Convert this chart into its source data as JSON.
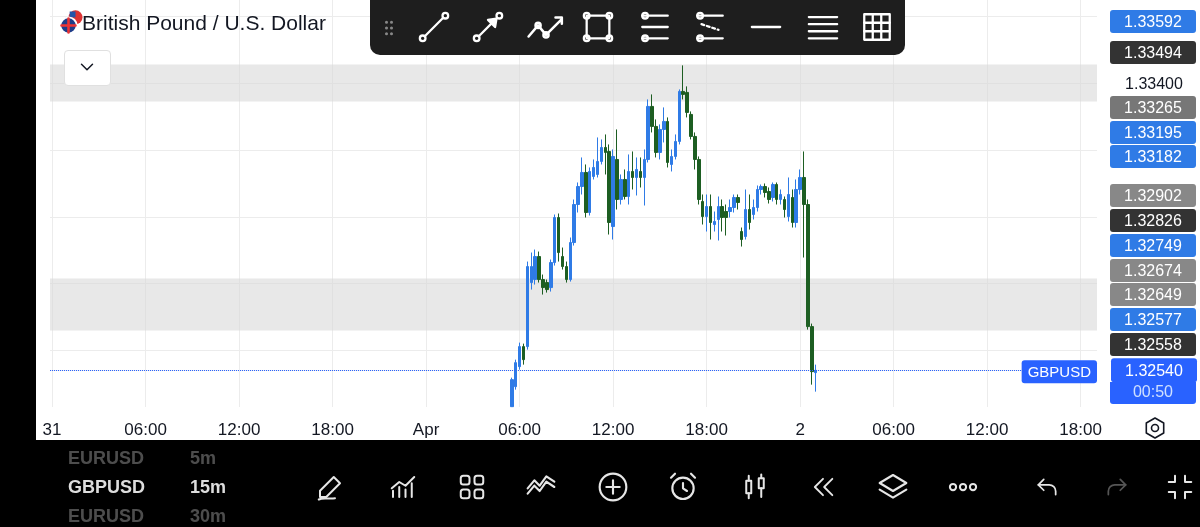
{
  "chart_data": {
    "type": "candlestick",
    "title": "British Pound / U.S. Dollar",
    "x": [
      "--04-01T05:30",
      "--04-01T05:45",
      "--04-01T06:00",
      "--04-01T06:15",
      "--04-01T06:30",
      "--04-01T06:45",
      "--04-01T07:00",
      "--04-01T07:15",
      "--04-01T07:30",
      "--04-01T07:45",
      "--04-01T08:00",
      "--04-01T08:15",
      "--04-01T08:30",
      "--04-01T08:45",
      "--04-01T09:00",
      "--04-01T09:15",
      "--04-01T09:30",
      "--04-01T09:45",
      "--04-01T10:00",
      "--04-01T10:15",
      "--04-01T10:30",
      "--04-01T10:45",
      "--04-01T11:00",
      "--04-01T11:15",
      "--04-01T11:30",
      "--04-01T11:45",
      "--04-01T12:00",
      "--04-01T12:15",
      "--04-01T12:30",
      "--04-01T12:45",
      "--04-01T13:00",
      "--04-01T13:15",
      "--04-01T13:30",
      "--04-01T13:45",
      "--04-01T14:00",
      "--04-01T14:15",
      "--04-01T14:30",
      "--04-01T14:45",
      "--04-01T15:00",
      "--04-01T15:15",
      "--04-01T15:30",
      "--04-01T15:45",
      "--04-01T16:00",
      "--04-01T16:15",
      "--04-01T16:30",
      "--04-01T16:45",
      "--04-01T17:00",
      "--04-01T17:15",
      "--04-01T17:30",
      "--04-01T17:45",
      "--04-01T18:00",
      "--04-01T18:15",
      "--04-01T18:30",
      "--04-01T18:45",
      "--04-01T19:00",
      "--04-01T19:15",
      "--04-01T19:30",
      "--04-01T19:45",
      "--04-01T20:00",
      "--04-01T20:15",
      "--04-01T20:30",
      "--04-01T20:45",
      "--04-01T21:00",
      "--04-01T21:15",
      "--04-01T21:30",
      "--04-01T21:45",
      "--04-01T22:00",
      "--04-01T22:15",
      "--04-01T22:30",
      "--04-01T22:45",
      "--04-01T23:00",
      "--04-01T23:15",
      "--04-01T23:30",
      "--04-01T23:45",
      "--04-02T00:00",
      "--04-02T00:15",
      "--04-02T00:30",
      "--04-02T00:45",
      "--04-02T01:00"
    ],
    "ohlc": [
      [
        1.32431,
        1.32518,
        1.32431,
        1.32512
      ],
      [
        1.32491,
        1.32572,
        1.32482,
        1.32563
      ],
      [
        1.32551,
        1.32623,
        1.32542,
        1.32611
      ],
      [
        1.32611,
        1.3262,
        1.32557,
        1.32572
      ],
      [
        1.32611,
        1.32866,
        1.32602,
        1.32851
      ],
      [
        1.32803,
        1.32893,
        1.32782,
        1.32851
      ],
      [
        1.32812,
        1.32902,
        1.32797,
        1.32881
      ],
      [
        1.32881,
        1.32896,
        1.32803,
        1.32812
      ],
      [
        1.32812,
        1.32827,
        1.32767,
        1.32788
      ],
      [
        1.32803,
        1.32812,
        1.32773,
        1.32782
      ],
      [
        1.32788,
        1.32872,
        1.32776,
        1.32863
      ],
      [
        1.32863,
        1.33007,
        1.32854,
        1.32998
      ],
      [
        1.32998,
        1.3301,
        1.32866,
        1.32893
      ],
      [
        1.32881,
        1.32908,
        1.32842,
        1.32851
      ],
      [
        1.32851,
        1.32866,
        1.32803,
        1.32812
      ],
      [
        1.32812,
        1.32938,
        1.32806,
        1.32923
      ],
      [
        1.32923,
        1.33052,
        1.32914,
        1.33037
      ],
      [
        1.33037,
        1.33103,
        1.33013,
        1.33091
      ],
      [
        1.33091,
        1.33178,
        1.33067,
        1.33133
      ],
      [
        1.33133,
        1.33157,
        1.32998,
        1.33013
      ],
      [
        1.33013,
        1.33148,
        1.33004,
        1.33136
      ],
      [
        1.33121,
        1.33172,
        1.33112,
        1.33148
      ],
      [
        1.33127,
        1.33238,
        1.33118,
        1.33166
      ],
      [
        1.33166,
        1.33232,
        1.33157,
        1.33208
      ],
      [
        1.33208,
        1.33247,
        1.33127,
        1.33193
      ],
      [
        1.33196,
        1.33217,
        1.32947,
        1.32983
      ],
      [
        1.32971,
        1.33202,
        1.32932,
        1.33181
      ],
      [
        1.33172,
        1.33262,
        1.33022,
        1.33052
      ],
      [
        1.33052,
        1.33127,
        1.33037,
        1.33112
      ],
      [
        1.33112,
        1.33142,
        1.33052,
        1.33061
      ],
      [
        1.33061,
        1.33187,
        1.33037,
        1.33136
      ],
      [
        1.33136,
        1.33196,
        1.33082,
        1.33118
      ],
      [
        1.33118,
        1.33178,
        1.33064,
        1.33142
      ],
      [
        1.33136,
        1.33178,
        1.33088,
        1.33118
      ],
      [
        1.33118,
        1.33202,
        1.33034,
        1.33172
      ],
      [
        1.33172,
        1.33352,
        1.33163,
        1.33331
      ],
      [
        1.33331,
        1.33367,
        1.33253,
        1.33271
      ],
      [
        1.33271,
        1.33292,
        1.33178,
        1.33193
      ],
      [
        1.33193,
        1.33277,
        1.33172,
        1.33262
      ],
      [
        1.33262,
        1.33328,
        1.33223,
        1.33286
      ],
      [
        1.33286,
        1.33298,
        1.33148,
        1.33163
      ],
      [
        1.33157,
        1.33202,
        1.33136,
        1.33181
      ],
      [
        1.33181,
        1.33247,
        1.33172,
        1.33226
      ],
      [
        1.33226,
        1.33382,
        1.33217,
        1.33376
      ],
      [
        1.33376,
        1.33454,
        1.33352,
        1.33367
      ],
      [
        1.33373,
        1.33391,
        1.33298,
        1.33313
      ],
      [
        1.33307,
        1.33316,
        1.33232,
        1.33241
      ],
      [
        1.33241,
        1.33253,
        1.33142,
        1.33172
      ],
      [
        1.33172,
        1.33181,
        1.33037,
        1.33052
      ],
      [
        1.33046,
        1.33067,
        1.32977,
        1.33001
      ],
      [
        1.33001,
        1.33067,
        1.32956,
        1.33031
      ],
      [
        1.33031,
        1.33067,
        1.32932,
        1.32983
      ],
      [
        1.32977,
        1.33016,
        1.32956,
        1.32986
      ],
      [
        1.32992,
        1.33061,
        1.32929,
        1.33031
      ],
      [
        1.33031,
        1.33052,
        1.32956,
        1.32998
      ],
      [
        1.33016,
        1.33037,
        1.32944,
        1.32998
      ],
      [
        1.33016,
        1.33052,
        1.32998,
        1.33028
      ],
      [
        1.33028,
        1.33067,
        1.33013,
        1.33058
      ],
      [
        1.33058,
        1.33067,
        1.33022,
        1.33043
      ],
      [
        1.32956,
        1.32968,
        1.32911,
        1.32932
      ],
      [
        1.32941,
        1.33082,
        1.32932,
        1.33022
      ],
      [
        1.33022,
        1.33067,
        1.32962,
        1.32983
      ],
      [
        1.33007,
        1.33052,
        1.32992,
        1.33028
      ],
      [
        1.33028,
        1.33094,
        1.33016,
        1.33082
      ],
      [
        1.33082,
        1.33097,
        1.33067,
        1.33091
      ],
      [
        1.33091,
        1.331,
        1.33058,
        1.33073
      ],
      [
        1.33076,
        1.33088,
        1.3304,
        1.33052
      ],
      [
        1.33058,
        1.33103,
        1.33046,
        1.33097
      ],
      [
        1.33097,
        1.33103,
        1.33037,
        1.33052
      ],
      [
        1.33052,
        1.33082,
        1.33037,
        1.33067
      ],
      [
        1.33052,
        1.33061,
        1.32998,
        1.33022
      ],
      [
        1.33001,
        1.33118,
        1.32986,
        1.33067
      ],
      [
        1.33058,
        1.33082,
        1.32968,
        1.32983
      ],
      [
        1.32983,
        1.33112,
        1.32968,
        1.33082
      ],
      [
        1.33082,
        1.33142,
        1.33067,
        1.33118
      ],
      [
        1.33118,
        1.33196,
        1.32878,
        1.33037
      ],
      [
        1.33037,
        1.33052,
        1.32662,
        1.32671
      ],
      [
        1.32671,
        1.3268,
        1.32497,
        1.32536
      ],
      [
        1.32533,
        1.32557,
        1.32476,
        1.3254
      ]
    ],
    "colors": [
      "#2f7be6",
      "#2f7be6",
      "#2f7be6",
      "#1d5e22",
      "#2f7be6",
      "#2f7be6",
      "#2f7be6",
      "#1d5e22",
      "#1d5e22",
      "#1d5e22",
      "#2f7be6",
      "#2f7be6",
      "#1d5e22",
      "#1d5e22",
      "#1d5e22",
      "#2f7be6",
      "#2f7be6",
      "#2f7be6",
      "#2f7be6",
      "#1d5e22",
      "#2f7be6",
      "#2f7be6",
      "#2f7be6",
      "#2f7be6",
      "#1d5e22",
      "#1d5e22",
      "#2f7be6",
      "#1d5e22",
      "#2f7be6",
      "#1d5e22",
      "#2f7be6",
      "#1d5e22",
      "#2f7be6",
      "#1d5e22",
      "#2f7be6",
      "#2f7be6",
      "#1d5e22",
      "#1d5e22",
      "#2f7be6",
      "#2f7be6",
      "#1d5e22",
      "#2f7be6",
      "#2f7be6",
      "#2f7be6",
      "#1d5e22",
      "#1d5e22",
      "#1d5e22",
      "#1d5e22",
      "#1d5e22",
      "#1d5e22",
      "#2f7be6",
      "#1d5e22",
      "#2f7be6",
      "#2f7be6",
      "#1d5e22",
      "#1d5e22",
      "#2f7be6",
      "#2f7be6",
      "#1d5e22",
      "#1d5e22",
      "#2f7be6",
      "#1d5e22",
      "#2f7be6",
      "#2f7be6",
      "#2f7be6",
      "#1d5e22",
      "#1d5e22",
      "#2f7be6",
      "#1d5e22",
      "#2f7be6",
      "#1d5e22",
      "#2f7be6",
      "#1d5e22",
      "#2f7be6",
      "#2f7be6",
      "#1d5e22",
      "#1d5e22",
      "#1d5e22",
      "#2f7be6"
    ],
    "xlim": [
      "--03-30T23:52",
      "--04-02T19:03"
    ],
    "xticks": [
      {
        "value": "--03-31",
        "label": "31"
      },
      {
        "value": "--03-31T06:00",
        "label": "06:00"
      },
      {
        "value": "--03-31T12:00",
        "label": "12:00"
      },
      {
        "value": "--03-31T18:00",
        "label": "18:00"
      },
      {
        "value": "--04-01",
        "label": "Apr"
      },
      {
        "value": "--04-01T06:00",
        "label": "06:00"
      },
      {
        "value": "--04-01T12:00",
        "label": "12:00"
      },
      {
        "value": "--04-01T18:00",
        "label": "18:00"
      },
      {
        "value": "--04-02",
        "label": "2"
      },
      {
        "value": "--04-02T06:00",
        "label": "06:00"
      },
      {
        "value": "--04-02T12:00",
        "label": "12:00"
      },
      {
        "value": "--04-02T18:00",
        "label": "18:00"
      }
    ],
    "ylim": [
      1.3243,
      1.3365
    ],
    "yticks": [
      {
        "value": 1.3254,
        "label": "1.32540"
      },
      {
        "value": 1.326,
        "label": null
      },
      {
        "value": 1.328,
        "label": null
      },
      {
        "value": 1.33,
        "label": null
      },
      {
        "value": 1.332,
        "label": null
      },
      {
        "value": 1.334,
        "label": "1.33400"
      },
      {
        "value": 1.336,
        "label": null
      }
    ],
    "grid": true,
    "bands": [
      {
        "axis": "y",
        "from": 1.33346,
        "to": 1.33457,
        "color": "#d9d9d9"
      },
      {
        "axis": "y",
        "from": 1.32659,
        "to": 1.32815,
        "color": "#d9d9d9"
      }
    ],
    "ref_lines": [
      {
        "axis": "y",
        "value": 1.3254,
        "label": "GBPUSD",
        "color": "#2962ff",
        "line_style": "dotted"
      }
    ],
    "annotations": [
      "1.33592",
      "1.33494",
      "1.33265",
      "1.33195",
      "1.33182",
      "1.32902",
      "1.32826",
      "1.32749",
      "1.32674",
      "1.32649",
      "1.32577",
      "1.32558",
      "00:50",
      "EURUSD",
      "5m",
      "GBPUSD",
      "15m",
      "EURUSD",
      "30m"
    ]
  }
}
